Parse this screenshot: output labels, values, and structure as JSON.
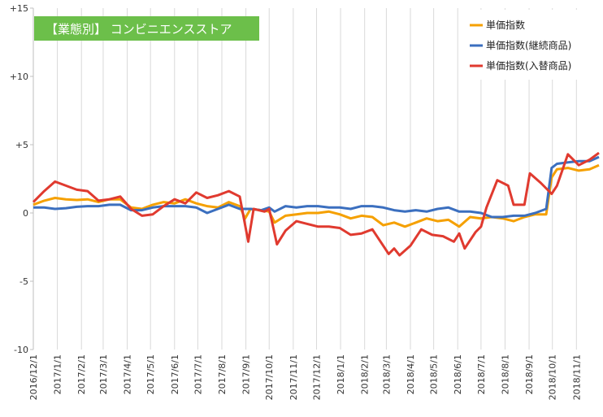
{
  "chart_data": {
    "type": "line",
    "title": "【業態別】 コンビニエンスストア",
    "title_box_color": "#6cbf4a",
    "ylim": [
      -10,
      15
    ],
    "yticks": [
      {
        "value": 15,
        "label": "+15"
      },
      {
        "value": 10,
        "label": "+10"
      },
      {
        "value": 5,
        "label": "+5"
      },
      {
        "value": 0,
        "label": "0"
      },
      {
        "value": -5,
        "label": "-5"
      },
      {
        "value": -10,
        "label": "-10"
      }
    ],
    "xrange": [
      "2016/12/1",
      "2018/11/30"
    ],
    "xticks": [
      "2016/12/1",
      "2017/1/1",
      "2017/2/1",
      "2017/3/1",
      "2017/4/1",
      "2017/5/1",
      "2017/6/1",
      "2017/7/1",
      "2017/8/1",
      "2017/9/1",
      "2017/10/1",
      "2017/11/1",
      "2017/12/1",
      "2018/1/1",
      "2018/2/1",
      "2018/3/1",
      "2018/4/1",
      "2018/5/1",
      "2018/6/1",
      "2018/7/1",
      "2018/8/1",
      "2018/9/1",
      "2018/10/1",
      "2018/11/1"
    ],
    "grid": "vertical",
    "legend_position": "top-right",
    "series": [
      {
        "name": "単価指数",
        "color": "#f5a000",
        "points": [
          [
            "2016/12/1",
            0.6
          ],
          [
            "2016/12/15",
            0.9
          ],
          [
            "2016/12/29",
            1.1
          ],
          [
            "2017/1/12",
            1.0
          ],
          [
            "2017/1/26",
            0.95
          ],
          [
            "2017/2/9",
            1.0
          ],
          [
            "2017/2/23",
            0.8
          ],
          [
            "2017/3/9",
            1.0
          ],
          [
            "2017/3/23",
            1.0
          ],
          [
            "2017/4/6",
            0.4
          ],
          [
            "2017/4/20",
            0.3
          ],
          [
            "2017/5/4",
            0.6
          ],
          [
            "2017/5/18",
            0.8
          ],
          [
            "2017/6/1",
            0.7
          ],
          [
            "2017/6/15",
            1.0
          ],
          [
            "2017/6/29",
            0.7
          ],
          [
            "2017/7/13",
            0.5
          ],
          [
            "2017/7/27",
            0.4
          ],
          [
            "2017/8/10",
            0.8
          ],
          [
            "2017/8/24",
            0.5
          ],
          [
            "2017/8/31",
            -0.4
          ],
          [
            "2017/9/7",
            0.3
          ],
          [
            "2017/9/21",
            0.2
          ],
          [
            "2017/10/1",
            0.1
          ],
          [
            "2017/10/8",
            -0.7
          ],
          [
            "2017/10/22",
            -0.2
          ],
          [
            "2017/11/5",
            -0.1
          ],
          [
            "2017/11/19",
            0.0
          ],
          [
            "2017/12/3",
            0.0
          ],
          [
            "2017/12/17",
            0.1
          ],
          [
            "2017/12/31",
            -0.1
          ],
          [
            "2018/1/14",
            -0.4
          ],
          [
            "2018/1/28",
            -0.2
          ],
          [
            "2018/2/11",
            -0.3
          ],
          [
            "2018/2/25",
            -0.9
          ],
          [
            "2018/3/11",
            -0.7
          ],
          [
            "2018/3/25",
            -1.0
          ],
          [
            "2018/4/8",
            -0.7
          ],
          [
            "2018/4/22",
            -0.4
          ],
          [
            "2018/5/6",
            -0.6
          ],
          [
            "2018/5/20",
            -0.5
          ],
          [
            "2018/6/3",
            -1.0
          ],
          [
            "2018/6/17",
            -0.3
          ],
          [
            "2018/7/1",
            -0.4
          ],
          [
            "2018/7/15",
            -0.3
          ],
          [
            "2018/7/29",
            -0.4
          ],
          [
            "2018/8/12",
            -0.6
          ],
          [
            "2018/8/26",
            -0.3
          ],
          [
            "2018/9/9",
            -0.1
          ],
          [
            "2018/9/23",
            -0.1
          ],
          [
            "2018/9/30",
            2.6
          ],
          [
            "2018/10/7",
            3.2
          ],
          [
            "2018/10/21",
            3.3
          ],
          [
            "2018/11/4",
            3.1
          ],
          [
            "2018/11/18",
            3.2
          ],
          [
            "2018/11/30",
            3.5
          ]
        ]
      },
      {
        "name": "単価指数(継続商品)",
        "color": "#3b6fbf",
        "points": [
          [
            "2016/12/1",
            0.4
          ],
          [
            "2016/12/15",
            0.4
          ],
          [
            "2016/12/29",
            0.3
          ],
          [
            "2017/1/12",
            0.35
          ],
          [
            "2017/1/26",
            0.45
          ],
          [
            "2017/2/9",
            0.5
          ],
          [
            "2017/2/23",
            0.5
          ],
          [
            "2017/3/9",
            0.6
          ],
          [
            "2017/3/23",
            0.6
          ],
          [
            "2017/4/6",
            0.2
          ],
          [
            "2017/4/20",
            0.2
          ],
          [
            "2017/5/4",
            0.4
          ],
          [
            "2017/5/18",
            0.5
          ],
          [
            "2017/6/1",
            0.5
          ],
          [
            "2017/6/15",
            0.5
          ],
          [
            "2017/6/29",
            0.4
          ],
          [
            "2017/7/13",
            0.0
          ],
          [
            "2017/7/27",
            0.3
          ],
          [
            "2017/8/10",
            0.6
          ],
          [
            "2017/8/24",
            0.3
          ],
          [
            "2017/9/7",
            0.3
          ],
          [
            "2017/9/21",
            0.2
          ],
          [
            "2017/10/1",
            0.4
          ],
          [
            "2017/10/8",
            0.1
          ],
          [
            "2017/10/22",
            0.5
          ],
          [
            "2017/11/5",
            0.4
          ],
          [
            "2017/11/19",
            0.5
          ],
          [
            "2017/12/3",
            0.5
          ],
          [
            "2017/12/17",
            0.4
          ],
          [
            "2017/12/31",
            0.4
          ],
          [
            "2018/1/14",
            0.3
          ],
          [
            "2018/1/28",
            0.5
          ],
          [
            "2018/2/11",
            0.5
          ],
          [
            "2018/2/25",
            0.4
          ],
          [
            "2018/3/11",
            0.2
          ],
          [
            "2018/3/25",
            0.1
          ],
          [
            "2018/4/8",
            0.2
          ],
          [
            "2018/4/22",
            0.1
          ],
          [
            "2018/5/6",
            0.3
          ],
          [
            "2018/5/20",
            0.4
          ],
          [
            "2018/6/3",
            0.1
          ],
          [
            "2018/6/17",
            0.1
          ],
          [
            "2018/7/1",
            0.0
          ],
          [
            "2018/7/15",
            -0.3
          ],
          [
            "2018/7/29",
            -0.3
          ],
          [
            "2018/8/12",
            -0.2
          ],
          [
            "2018/8/26",
            -0.2
          ],
          [
            "2018/9/9",
            0.0
          ],
          [
            "2018/9/23",
            0.3
          ],
          [
            "2018/9/30",
            3.3
          ],
          [
            "2018/10/7",
            3.6
          ],
          [
            "2018/10/21",
            3.7
          ],
          [
            "2018/11/4",
            3.8
          ],
          [
            "2018/11/18",
            3.8
          ],
          [
            "2018/11/30",
            4.1
          ]
        ]
      },
      {
        "name": "単価指数(入替商品)",
        "color": "#e03a2f",
        "points": [
          [
            "2016/12/1",
            0.8
          ],
          [
            "2016/12/15",
            1.6
          ],
          [
            "2016/12/29",
            2.3
          ],
          [
            "2017/1/12",
            2.0
          ],
          [
            "2017/1/26",
            1.7
          ],
          [
            "2017/2/9",
            1.6
          ],
          [
            "2017/2/23",
            0.9
          ],
          [
            "2017/3/9",
            1.0
          ],
          [
            "2017/3/23",
            1.2
          ],
          [
            "2017/4/6",
            0.3
          ],
          [
            "2017/4/20",
            -0.2
          ],
          [
            "2017/5/4",
            -0.1
          ],
          [
            "2017/5/18",
            0.5
          ],
          [
            "2017/6/1",
            1.0
          ],
          [
            "2017/6/15",
            0.7
          ],
          [
            "2017/6/29",
            1.5
          ],
          [
            "2017/7/13",
            1.1
          ],
          [
            "2017/7/27",
            1.3
          ],
          [
            "2017/8/10",
            1.6
          ],
          [
            "2017/8/24",
            1.2
          ],
          [
            "2017/9/4",
            -2.1
          ],
          [
            "2017/9/11",
            0.3
          ],
          [
            "2017/9/25",
            0.1
          ],
          [
            "2017/10/1",
            0.3
          ],
          [
            "2017/10/11",
            -2.3
          ],
          [
            "2017/10/22",
            -1.3
          ],
          [
            "2017/11/5",
            -0.6
          ],
          [
            "2017/11/19",
            -0.8
          ],
          [
            "2017/12/3",
            -1.0
          ],
          [
            "2017/12/17",
            -1.0
          ],
          [
            "2017/12/31",
            -1.1
          ],
          [
            "2018/1/14",
            -1.6
          ],
          [
            "2018/1/28",
            -1.5
          ],
          [
            "2018/2/11",
            -1.2
          ],
          [
            "2018/2/25",
            -2.4
          ],
          [
            "2018/3/4",
            -3.0
          ],
          [
            "2018/3/11",
            -2.6
          ],
          [
            "2018/3/18",
            -3.1
          ],
          [
            "2018/4/1",
            -2.4
          ],
          [
            "2018/4/15",
            -1.2
          ],
          [
            "2018/4/29",
            -1.6
          ],
          [
            "2018/5/13",
            -1.7
          ],
          [
            "2018/5/27",
            -2.1
          ],
          [
            "2018/6/3",
            -1.5
          ],
          [
            "2018/6/10",
            -2.6
          ],
          [
            "2018/6/24",
            -1.4
          ],
          [
            "2018/7/1",
            -1.0
          ],
          [
            "2018/7/8",
            0.4
          ],
          [
            "2018/7/22",
            2.4
          ],
          [
            "2018/8/5",
            2.0
          ],
          [
            "2018/8/12",
            0.6
          ],
          [
            "2018/8/26",
            0.6
          ],
          [
            "2018/9/2",
            2.9
          ],
          [
            "2018/9/16",
            2.2
          ],
          [
            "2018/9/30",
            1.4
          ],
          [
            "2018/10/7",
            2.0
          ],
          [
            "2018/10/21",
            4.3
          ],
          [
            "2018/11/4",
            3.5
          ],
          [
            "2018/11/18",
            3.9
          ],
          [
            "2018/11/30",
            4.4
          ]
        ]
      }
    ]
  }
}
